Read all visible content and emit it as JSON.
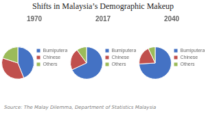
{
  "title": "Shifts in Malaysia’s Demographic Makeup",
  "annotations": [
    "Source: The Malay Dilemma, Department of Statistics Malaysia"
  ],
  "chart_data": [
    {
      "type": "pie",
      "title": "1970",
      "categories": [
        "Bumiputera",
        "Chinese",
        "Others"
      ],
      "values": [
        44,
        36,
        20
      ],
      "colors": [
        "#4472C4",
        "#C0504D",
        "#9BBB59"
      ],
      "legend": "right"
    },
    {
      "type": "pie",
      "title": "2017",
      "categories": [
        "Bumiputera",
        "Chinese",
        "Others"
      ],
      "values": [
        68,
        22,
        10
      ],
      "colors": [
        "#4472C4",
        "#C0504D",
        "#9BBB59"
      ],
      "legend": "right"
    },
    {
      "type": "pie",
      "title": "2040",
      "categories": [
        "Bumiputera",
        "Chinese",
        "Others"
      ],
      "values": [
        74,
        19,
        7
      ],
      "colors": [
        "#4472C4",
        "#C0504D",
        "#9BBB59"
      ],
      "legend": "right"
    }
  ]
}
